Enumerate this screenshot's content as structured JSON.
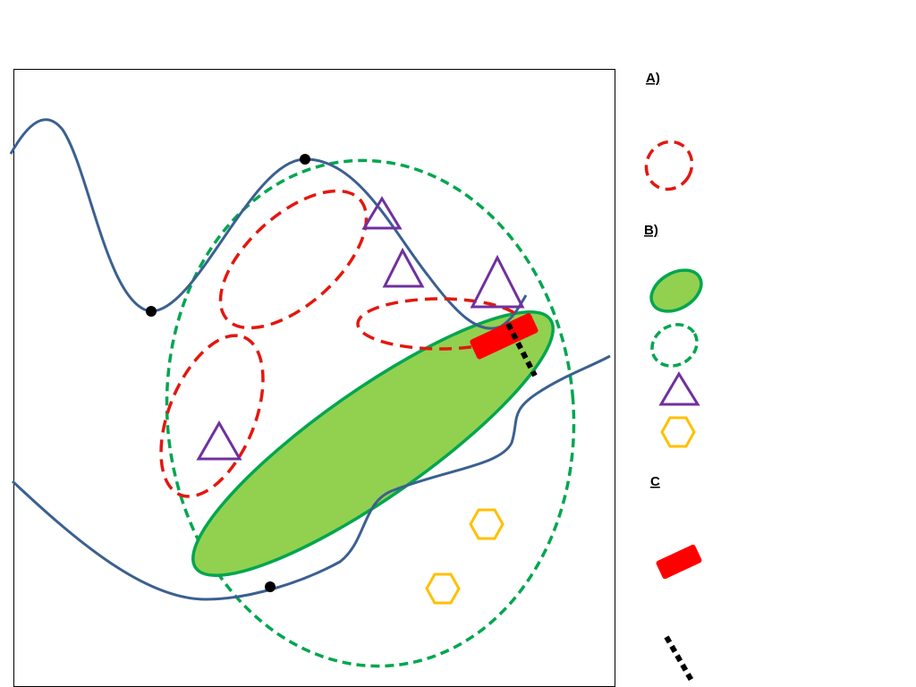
{
  "legend": {
    "sections": [
      {
        "label": "A)"
      },
      {
        "label": "B)"
      },
      {
        "label": "C"
      }
    ]
  }
}
